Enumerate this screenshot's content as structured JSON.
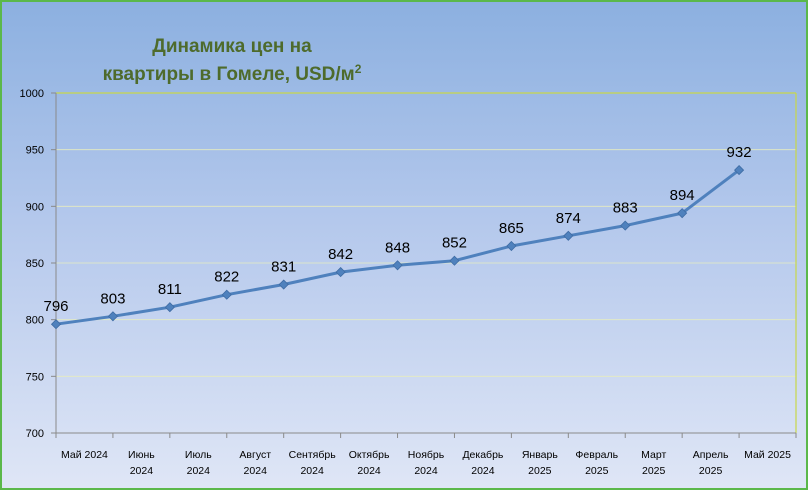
{
  "chart_data": {
    "type": "line",
    "title_line1": "Динамика цен на",
    "title_line2": "квартиры в Гомеле, USD/м",
    "title_superscript": "2",
    "categories": [
      [
        "Май 2024"
      ],
      [
        "Июнь",
        "2024"
      ],
      [
        "Июль",
        "2024"
      ],
      [
        "Август",
        "2024"
      ],
      [
        "Сентябрь",
        "2024"
      ],
      [
        "Октябрь",
        "2024"
      ],
      [
        "Ноябрь",
        "2024"
      ],
      [
        "Декабрь",
        "2024"
      ],
      [
        "Январь",
        "2025"
      ],
      [
        "Февраль",
        "2025"
      ],
      [
        "Март",
        "2025"
      ],
      [
        "Апрель",
        "2025"
      ],
      [
        "Май 2025"
      ]
    ],
    "values": [
      796,
      803,
      811,
      822,
      831,
      842,
      848,
      852,
      865,
      874,
      883,
      894,
      932
    ],
    "ylim": [
      700,
      1000
    ],
    "yticks": [
      700,
      750,
      800,
      850,
      900,
      950,
      1000
    ],
    "colors": {
      "line": "#4f81bd",
      "plot_border": "#c8d84a",
      "grid": "#e6ecc0"
    }
  }
}
